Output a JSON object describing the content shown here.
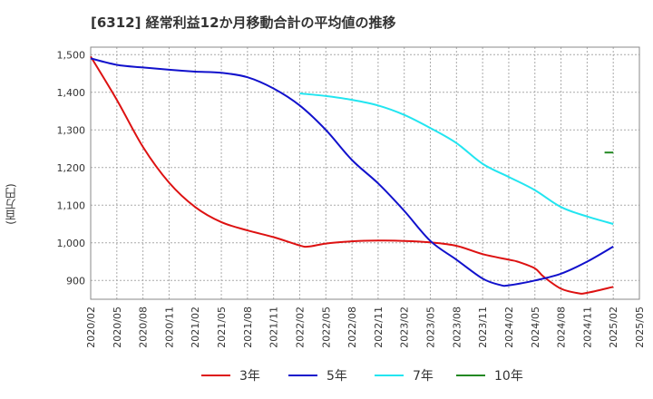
{
  "chart_data": {
    "type": "line",
    "title": "[6312]  経常利益12か月移動合計の平均値の推移",
    "ylabel": "(百万円)",
    "xlabel": "",
    "ylim": [
      850,
      1520
    ],
    "yticks": [
      900,
      1000,
      1100,
      1200,
      1300,
      1400,
      1500
    ],
    "ytick_labels": [
      "900",
      "1,000",
      "1,100",
      "1,200",
      "1,300",
      "1,400",
      "1,500"
    ],
    "xticks": [
      "2020/02",
      "2020/05",
      "2020/08",
      "2020/11",
      "2021/02",
      "2021/05",
      "2021/08",
      "2021/11",
      "2022/02",
      "2022/05",
      "2022/08",
      "2022/11",
      "2023/02",
      "2023/05",
      "2023/08",
      "2023/11",
      "2024/02",
      "2024/05",
      "2024/08",
      "2024/11",
      "2025/02",
      "2025/05"
    ],
    "grid": true,
    "legend_position": "bottom",
    "series": [
      {
        "name": "3年",
        "color": "#dd1111",
        "points": [
          [
            "2020/02",
            1495
          ],
          [
            "2020/05",
            1380
          ],
          [
            "2020/08",
            1255
          ],
          [
            "2020/11",
            1160
          ],
          [
            "2021/02",
            1095
          ],
          [
            "2021/05",
            1055
          ],
          [
            "2021/08",
            1033
          ],
          [
            "2021/11",
            1015
          ],
          [
            "2022/02",
            993
          ],
          [
            "2022/03",
            990
          ],
          [
            "2022/05",
            998
          ],
          [
            "2022/08",
            1004
          ],
          [
            "2022/11",
            1006
          ],
          [
            "2023/02",
            1005
          ],
          [
            "2023/05",
            1001
          ],
          [
            "2023/08",
            992
          ],
          [
            "2023/11",
            970
          ],
          [
            "2024/02",
            955
          ],
          [
            "2024/03",
            950
          ],
          [
            "2024/05",
            932
          ],
          [
            "2024/06",
            910
          ],
          [
            "2024/08",
            878
          ],
          [
            "2024/10",
            866
          ],
          [
            "2024/11",
            867
          ],
          [
            "2025/02",
            883
          ]
        ]
      },
      {
        "name": "5年",
        "color": "#1111cc",
        "points": [
          [
            "2020/02",
            1490
          ],
          [
            "2020/05",
            1473
          ],
          [
            "2020/08",
            1466
          ],
          [
            "2020/11",
            1460
          ],
          [
            "2021/02",
            1455
          ],
          [
            "2021/05",
            1452
          ],
          [
            "2021/08",
            1440
          ],
          [
            "2021/11",
            1410
          ],
          [
            "2022/02",
            1365
          ],
          [
            "2022/05",
            1300
          ],
          [
            "2022/08",
            1220
          ],
          [
            "2022/11",
            1158
          ],
          [
            "2023/02",
            1085
          ],
          [
            "2023/05",
            1005
          ],
          [
            "2023/08",
            955
          ],
          [
            "2023/11",
            905
          ],
          [
            "2024/01",
            888
          ],
          [
            "2024/02",
            887
          ],
          [
            "2024/05",
            900
          ],
          [
            "2024/08",
            918
          ],
          [
            "2024/11",
            950
          ],
          [
            "2025/02",
            990
          ]
        ]
      },
      {
        "name": "7年",
        "color": "#22e5f0",
        "points": [
          [
            "2022/02",
            1397
          ],
          [
            "2022/05",
            1390
          ],
          [
            "2022/08",
            1380
          ],
          [
            "2022/11",
            1365
          ],
          [
            "2023/02",
            1340
          ],
          [
            "2023/05",
            1305
          ],
          [
            "2023/08",
            1265
          ],
          [
            "2023/11",
            1210
          ],
          [
            "2024/02",
            1175
          ],
          [
            "2024/05",
            1140
          ],
          [
            "2024/08",
            1095
          ],
          [
            "2024/11",
            1070
          ],
          [
            "2025/02",
            1050
          ]
        ]
      },
      {
        "name": "10年",
        "color": "#228822",
        "points": [
          [
            "2025/01",
            1240
          ],
          [
            "2025/02",
            1240
          ]
        ]
      }
    ]
  }
}
